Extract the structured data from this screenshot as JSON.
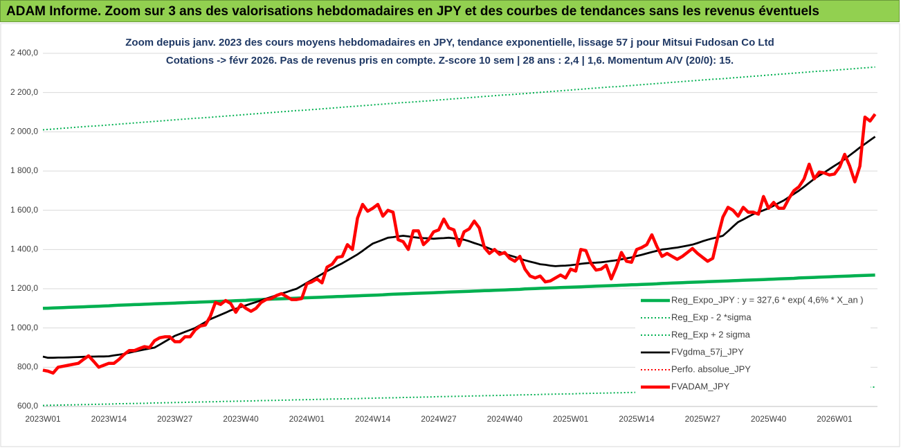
{
  "header": {
    "title": "ADAM Informe. Zoom sur 3 ans des valorisations hebdomadaires en JPY et des courbes de tendances sans les revenus éventuels"
  },
  "chart_data": {
    "type": "line",
    "title": [
      "Zoom depuis janv. 2023 des cours moyens hebdomadaires en JPY, tendance exponentielle, lissage 57 j pour Mitsui Fudosan Co Ltd",
      "Cotations -> févr 2026. Pas de revenus pris en compte. Z-score 10 sem | 28 ans : 2,4 | 1,6. Momentum A/V (20/0): 15."
    ],
    "categories": [
      "2023W01",
      null,
      null,
      null,
      null,
      null,
      null,
      null,
      null,
      null,
      null,
      null,
      null,
      "2023W14",
      null,
      null,
      null,
      null,
      null,
      null,
      null,
      null,
      null,
      null,
      null,
      null,
      "2023W27",
      null,
      null,
      null,
      null,
      null,
      null,
      null,
      null,
      null,
      null,
      null,
      null,
      "2023W40",
      null,
      null,
      null,
      null,
      null,
      null,
      null,
      null,
      null,
      null,
      null,
      null,
      "2024W01",
      null,
      null,
      null,
      null,
      null,
      null,
      null,
      null,
      null,
      null,
      null,
      null,
      "2024W14",
      null,
      null,
      null,
      null,
      null,
      null,
      null,
      null,
      null,
      null,
      null,
      null,
      "2024W27",
      null,
      null,
      null,
      null,
      null,
      null,
      null,
      null,
      null,
      null,
      null,
      null,
      "2024W40",
      null,
      null,
      null,
      null,
      null,
      null,
      null,
      null,
      null,
      null,
      null,
      null,
      "2025W01",
      null,
      null,
      null,
      null,
      null,
      null,
      null,
      null,
      null,
      null,
      null,
      null,
      "2025W14",
      null,
      null,
      null,
      null,
      null,
      null,
      null,
      null,
      null,
      null,
      null,
      null,
      "2025W27",
      null,
      null,
      null,
      null,
      null,
      null,
      null,
      null,
      null,
      null,
      null,
      null,
      "2025W40",
      null,
      null,
      null,
      null,
      null,
      null,
      null,
      null,
      null,
      null,
      null,
      null,
      "2026W01",
      null,
      null,
      null,
      null,
      null,
      null,
      null,
      null
    ],
    "ylim": [
      600,
      2400
    ],
    "yticks": [
      {
        "value": 600,
        "label": "600,0"
      },
      {
        "value": 800,
        "label": "800,0"
      },
      {
        "value": 1000,
        "label": "1 000,0"
      },
      {
        "value": 1200,
        "label": "1 200,0"
      },
      {
        "value": 1400,
        "label": "1 400,0"
      },
      {
        "value": 1600,
        "label": "1 600,0"
      },
      {
        "value": 1800,
        "label": "1 800,0"
      },
      {
        "value": 2000,
        "label": "2 000,0"
      },
      {
        "value": 2200,
        "label": "2 200,0"
      },
      {
        "value": 2400,
        "label": "2 400,0"
      }
    ],
    "grid": true,
    "legend": "lower right",
    "series": [
      {
        "name": "Reg_Expo_JPY : y = 327,6 * exp( 4,6% *  X_an )",
        "color": "#00b050",
        "style": "thick",
        "values": [
          1100,
          1101,
          1102,
          1103,
          1104,
          1105,
          1106,
          1107,
          1108,
          1109,
          1110,
          1111,
          1112,
          1113,
          1115,
          1116,
          1117,
          1118,
          1119,
          1120,
          1121,
          1122,
          1123,
          1124,
          1125,
          1126,
          1127,
          1128,
          1129,
          1130,
          1131,
          1132,
          1133,
          1134,
          1135,
          1136,
          1137,
          1138,
          1139,
          1140,
          1141,
          1143,
          1144,
          1145,
          1146,
          1147,
          1148,
          1149,
          1150,
          1151,
          1152,
          1153,
          1154,
          1155,
          1156,
          1157,
          1158,
          1159,
          1160,
          1161,
          1162,
          1163,
          1164,
          1165,
          1166,
          1167,
          1168,
          1169,
          1171,
          1172,
          1173,
          1174,
          1175,
          1176,
          1177,
          1178,
          1179,
          1180,
          1181,
          1182,
          1183,
          1184,
          1185,
          1186,
          1187,
          1188,
          1189,
          1190,
          1191,
          1192,
          1193,
          1194,
          1195,
          1196,
          1197,
          1199,
          1200,
          1201,
          1202,
          1203,
          1204,
          1205,
          1206,
          1207,
          1208,
          1209,
          1210,
          1211,
          1212,
          1213,
          1214,
          1215,
          1216,
          1217,
          1218,
          1219,
          1220,
          1221,
          1222,
          1223,
          1224,
          1225,
          1227,
          1228,
          1229,
          1230,
          1231,
          1232,
          1233,
          1234,
          1235,
          1236,
          1237,
          1238,
          1239,
          1240,
          1241,
          1242,
          1243,
          1244,
          1245,
          1246,
          1247,
          1248,
          1249,
          1250,
          1251,
          1252,
          1253,
          1255,
          1256,
          1257,
          1258,
          1259,
          1260,
          1261,
          1262,
          1263,
          1264,
          1265,
          1266,
          1267,
          1268,
          1269,
          1270
        ]
      },
      {
        "name": "Reg_Exp - 2 *sigma",
        "color": "#00b050",
        "style": "dotted",
        "values": [
          605,
          606,
          606,
          607,
          607,
          608,
          608,
          609,
          610,
          610,
          611,
          611,
          612,
          612,
          613,
          614,
          614,
          615,
          615,
          616,
          616,
          617,
          618,
          618,
          619,
          619,
          620,
          620,
          621,
          622,
          622,
          623,
          623,
          624,
          624,
          625,
          626,
          626,
          627,
          627,
          628,
          628,
          629,
          630,
          630,
          631,
          631,
          632,
          632,
          633,
          634,
          634,
          635,
          635,
          636,
          636,
          637,
          638,
          638,
          639,
          639,
          640,
          640,
          641,
          642,
          642,
          643,
          643,
          644,
          644,
          645,
          646,
          646,
          647,
          647,
          648,
          648,
          649,
          650,
          650,
          651,
          651,
          652,
          652,
          653,
          654,
          654,
          655,
          655,
          656,
          656,
          657,
          658,
          658,
          659,
          659,
          660,
          660,
          661,
          662,
          662,
          663,
          663,
          664,
          664,
          665,
          666,
          666,
          667,
          667,
          668,
          668,
          669,
          670,
          670,
          671,
          671,
          672,
          672,
          673,
          674,
          674,
          675,
          675,
          676,
          676,
          677,
          678,
          678,
          679,
          679,
          680,
          680,
          681,
          682,
          682,
          683,
          683,
          684,
          684,
          685,
          686,
          686,
          687,
          687,
          688,
          688,
          689,
          690,
          690,
          691,
          691,
          692,
          692,
          693,
          694,
          694,
          695,
          695,
          696,
          696,
          697,
          698,
          698,
          699
        ]
      },
      {
        "name": "Reg_Exp + 2 sigma",
        "color": "#00b050",
        "style": "dotted",
        "values": [
          2010,
          2012,
          2014,
          2016,
          2018,
          2020,
          2022,
          2024,
          2026,
          2028,
          2029,
          2031,
          2033,
          2035,
          2037,
          2039,
          2041,
          2043,
          2045,
          2047,
          2049,
          2051,
          2053,
          2055,
          2057,
          2059,
          2061,
          2063,
          2065,
          2067,
          2069,
          2070,
          2072,
          2074,
          2076,
          2078,
          2080,
          2082,
          2084,
          2086,
          2088,
          2090,
          2092,
          2094,
          2096,
          2098,
          2100,
          2102,
          2104,
          2106,
          2108,
          2109,
          2111,
          2113,
          2115,
          2117,
          2119,
          2121,
          2123,
          2125,
          2127,
          2129,
          2131,
          2133,
          2135,
          2137,
          2139,
          2141,
          2143,
          2145,
          2147,
          2149,
          2150,
          2152,
          2154,
          2156,
          2158,
          2160,
          2162,
          2164,
          2166,
          2168,
          2170,
          2172,
          2174,
          2176,
          2178,
          2180,
          2182,
          2184,
          2186,
          2188,
          2189,
          2191,
          2193,
          2195,
          2197,
          2199,
          2201,
          2203,
          2205,
          2207,
          2209,
          2211,
          2213,
          2215,
          2217,
          2219,
          2221,
          2223,
          2225,
          2227,
          2229,
          2230,
          2232,
          2234,
          2236,
          2238,
          2240,
          2242,
          2244,
          2246,
          2248,
          2250,
          2252,
          2254,
          2256,
          2258,
          2260,
          2262,
          2264,
          2266,
          2268,
          2269,
          2271,
          2273,
          2275,
          2277,
          2279,
          2281,
          2283,
          2285,
          2287,
          2289,
          2291,
          2293,
          2295,
          2297,
          2299,
          2301,
          2303,
          2305,
          2307,
          2309,
          2310,
          2312,
          2314,
          2316,
          2318,
          2320,
          2322,
          2324,
          2326,
          2328,
          2330
        ]
      },
      {
        "name": "FVgdma_57j_JPY",
        "color": "#000000",
        "style": "solid",
        "values": [
          854,
          848,
          848,
          849,
          849,
          850,
          851,
          852,
          853,
          854,
          854,
          855,
          855,
          856,
          860,
          864,
          868,
          874,
          880,
          885,
          890,
          895,
          900,
          915,
          930,
          945,
          960,
          970,
          980,
          990,
          1000,
          1015,
          1030,
          1045,
          1056,
          1067,
          1078,
          1090,
          1098,
          1107,
          1115,
          1124,
          1132,
          1141,
          1150,
          1158,
          1167,
          1175,
          1183,
          1192,
          1200,
          1215,
          1230,
          1245,
          1260,
          1275,
          1290,
          1303,
          1317,
          1330,
          1345,
          1360,
          1375,
          1393,
          1412,
          1430,
          1440,
          1450,
          1460,
          1463,
          1467,
          1470,
          1467,
          1463,
          1460,
          1458,
          1457,
          1455,
          1457,
          1458,
          1460,
          1457,
          1453,
          1450,
          1442,
          1433,
          1425,
          1415,
          1405,
          1395,
          1387,
          1378,
          1370,
          1362,
          1353,
          1345,
          1338,
          1332,
          1325,
          1322,
          1318,
          1315,
          1317,
          1318,
          1320,
          1323,
          1327,
          1330,
          1332,
          1333,
          1335,
          1338,
          1342,
          1345,
          1350,
          1355,
          1360,
          1367,
          1373,
          1380,
          1387,
          1393,
          1400,
          1403,
          1407,
          1410,
          1415,
          1420,
          1425,
          1433,
          1442,
          1450,
          1457,
          1463,
          1470,
          1493,
          1517,
          1540,
          1553,
          1567,
          1580,
          1590,
          1600,
          1610,
          1623,
          1637,
          1650,
          1667,
          1683,
          1700,
          1720,
          1740,
          1760,
          1777,
          1793,
          1810,
          1827,
          1843,
          1860,
          1880,
          1900,
          1920,
          1938,
          1957,
          1975
        ]
      },
      {
        "name": "Perfo. absolue_JPY",
        "color": "#ff0000",
        "style": "dotted",
        "values": [
          785,
          780,
          770,
          800,
          805,
          810,
          815,
          820,
          840,
          858,
          830,
          800,
          810,
          820,
          820,
          840,
          865,
          885,
          885,
          895,
          905,
          900,
          935,
          950,
          955,
          955,
          930,
          930,
          955,
          955,
          990,
          1010,
          1015,
          1060,
          1130,
          1120,
          1140,
          1125,
          1080,
          1120,
          1100,
          1085,
          1100,
          1130,
          1145,
          1150,
          1165,
          1175,
          1160,
          1145,
          1145,
          1150,
          1225,
          1235,
          1250,
          1230,
          1310,
          1325,
          1360,
          1365,
          1425,
          1400,
          1560,
          1630,
          1595,
          1610,
          1630,
          1570,
          1600,
          1590,
          1450,
          1440,
          1400,
          1495,
          1495,
          1425,
          1450,
          1490,
          1500,
          1555,
          1510,
          1500,
          1420,
          1490,
          1505,
          1545,
          1510,
          1410,
          1380,
          1400,
          1375,
          1385,
          1355,
          1340,
          1365,
          1300,
          1265,
          1255,
          1265,
          1235,
          1240,
          1255,
          1270,
          1255,
          1300,
          1290,
          1400,
          1395,
          1330,
          1295,
          1300,
          1320,
          1250,
          1310,
          1385,
          1340,
          1335,
          1400,
          1410,
          1425,
          1475,
          1415,
          1365,
          1380,
          1365,
          1350,
          1365,
          1385,
          1405,
          1380,
          1360,
          1340,
          1355,
          1465,
          1565,
          1615,
          1600,
          1570,
          1615,
          1590,
          1590,
          1580,
          1670,
          1610,
          1640,
          1610,
          1610,
          1660,
          1700,
          1720,
          1760,
          1835,
          1760,
          1795,
          1790,
          1780,
          1785,
          1820,
          1885,
          1825,
          1745,
          1825,
          2075,
          2055,
          2090
        ]
      },
      {
        "name": "FVADAM_JPY",
        "color": "#ff0000",
        "style": "thick",
        "values": [
          785,
          780,
          770,
          800,
          805,
          810,
          815,
          820,
          840,
          858,
          830,
          800,
          810,
          820,
          820,
          840,
          865,
          885,
          885,
          895,
          905,
          900,
          935,
          950,
          955,
          955,
          930,
          930,
          955,
          955,
          990,
          1010,
          1015,
          1060,
          1130,
          1120,
          1140,
          1125,
          1080,
          1120,
          1100,
          1085,
          1100,
          1130,
          1145,
          1150,
          1165,
          1175,
          1160,
          1145,
          1145,
          1150,
          1225,
          1235,
          1250,
          1230,
          1310,
          1325,
          1360,
          1365,
          1425,
          1400,
          1560,
          1630,
          1595,
          1610,
          1630,
          1570,
          1600,
          1590,
          1450,
          1440,
          1400,
          1495,
          1495,
          1425,
          1450,
          1490,
          1500,
          1555,
          1510,
          1500,
          1420,
          1490,
          1505,
          1545,
          1510,
          1410,
          1380,
          1400,
          1375,
          1385,
          1355,
          1340,
          1365,
          1300,
          1265,
          1255,
          1265,
          1235,
          1240,
          1255,
          1270,
          1255,
          1300,
          1290,
          1400,
          1395,
          1330,
          1295,
          1300,
          1320,
          1250,
          1310,
          1385,
          1340,
          1335,
          1400,
          1410,
          1425,
          1475,
          1415,
          1365,
          1380,
          1365,
          1350,
          1365,
          1385,
          1405,
          1380,
          1360,
          1340,
          1355,
          1465,
          1565,
          1615,
          1600,
          1570,
          1615,
          1590,
          1590,
          1580,
          1670,
          1610,
          1640,
          1610,
          1610,
          1660,
          1700,
          1720,
          1760,
          1835,
          1760,
          1795,
          1790,
          1780,
          1785,
          1820,
          1885,
          1825,
          1745,
          1825,
          2075,
          2055,
          2090
        ]
      }
    ]
  }
}
